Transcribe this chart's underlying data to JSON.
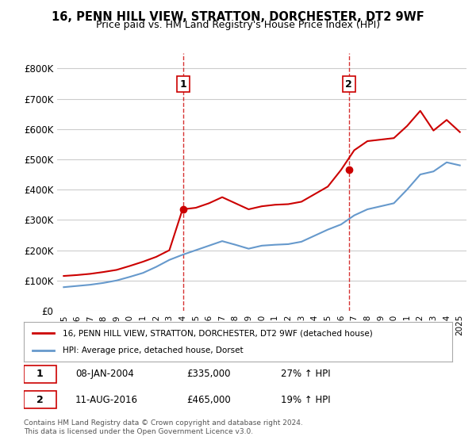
{
  "title": "16, PENN HILL VIEW, STRATTON, DORCHESTER, DT2 9WF",
  "subtitle": "Price paid vs. HM Land Registry's House Price Index (HPI)",
  "legend_line1": "16, PENN HILL VIEW, STRATTON, DORCHESTER, DT2 9WF (detached house)",
  "legend_line2": "HPI: Average price, detached house, Dorset",
  "footnote": "Contains HM Land Registry data © Crown copyright and database right 2024.\nThis data is licensed under the Open Government Licence v3.0.",
  "annotation1_label": "1",
  "annotation1_date": "08-JAN-2004",
  "annotation1_price": "£335,000",
  "annotation1_hpi": "27% ↑ HPI",
  "annotation2_label": "2",
  "annotation2_date": "11-AUG-2016",
  "annotation2_price": "£465,000",
  "annotation2_hpi": "19% ↑ HPI",
  "red_color": "#cc0000",
  "blue_color": "#6699cc",
  "dashed_red": "#cc0000",
  "background_color": "#ffffff",
  "grid_color": "#cccccc",
  "ylim": [
    0,
    850000
  ],
  "yticks": [
    0,
    100000,
    200000,
    300000,
    400000,
    500000,
    600000,
    700000,
    800000
  ],
  "ytick_labels": [
    "£0",
    "£100K",
    "£200K",
    "£300K",
    "£400K",
    "£500K",
    "£600K",
    "£700K",
    "£800K"
  ],
  "hpi_years": [
    1995,
    1996,
    1997,
    1998,
    1999,
    2000,
    2001,
    2002,
    2003,
    2004,
    2005,
    2006,
    2007,
    2008,
    2009,
    2010,
    2011,
    2012,
    2013,
    2014,
    2015,
    2016,
    2017,
    2018,
    2019,
    2020,
    2021,
    2022,
    2023,
    2024,
    2025
  ],
  "hpi_values": [
    78000,
    82000,
    86000,
    92000,
    100000,
    112000,
    125000,
    145000,
    168000,
    185000,
    200000,
    215000,
    230000,
    218000,
    205000,
    215000,
    218000,
    220000,
    228000,
    248000,
    268000,
    285000,
    315000,
    335000,
    345000,
    355000,
    400000,
    450000,
    460000,
    490000,
    480000
  ],
  "price_paid_dates": [
    2004.03,
    2016.6
  ],
  "price_paid_values": [
    335000,
    465000
  ],
  "red_line_years": [
    1995,
    1996,
    1997,
    1998,
    1999,
    2000,
    2001,
    2002,
    2003,
    2004,
    2005,
    2006,
    2007,
    2008,
    2009,
    2010,
    2011,
    2012,
    2013,
    2014,
    2015,
    2016,
    2017,
    2018,
    2019,
    2020,
    2021,
    2022,
    2023,
    2024,
    2025
  ],
  "red_line_values": [
    115000,
    118000,
    122000,
    128000,
    135000,
    148000,
    162000,
    178000,
    200000,
    335000,
    340000,
    355000,
    375000,
    355000,
    335000,
    345000,
    350000,
    352000,
    360000,
    385000,
    410000,
    465000,
    530000,
    560000,
    565000,
    570000,
    610000,
    660000,
    595000,
    630000,
    590000
  ],
  "xtick_years": [
    1995,
    1996,
    1997,
    1998,
    1999,
    2000,
    2001,
    2002,
    2003,
    2004,
    2005,
    2006,
    2007,
    2008,
    2009,
    2010,
    2011,
    2012,
    2013,
    2014,
    2015,
    2016,
    2017,
    2018,
    2019,
    2020,
    2021,
    2022,
    2023,
    2024,
    2025
  ],
  "vline1_x": 2004.03,
  "vline2_x": 2016.6,
  "marker1_x": 2004.03,
  "marker1_y": 335000,
  "marker2_x": 2016.6,
  "marker2_y": 465000
}
